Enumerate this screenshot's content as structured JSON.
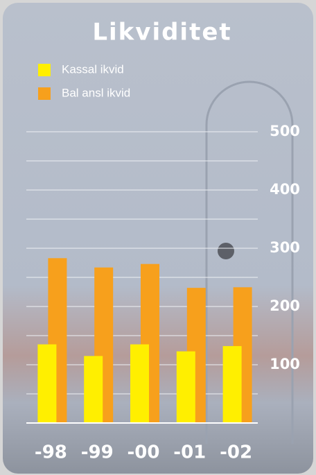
{
  "chart_data": {
    "type": "bar",
    "title": "Likviditet",
    "categories": [
      "-98",
      "-99",
      "-00",
      "-01",
      "-02"
    ],
    "series": [
      {
        "name": "Kassal ikvid",
        "color": "#ffef00",
        "values": [
          135,
          115,
          135,
          123,
          132
        ]
      },
      {
        "name": "Bal ansl ikvid",
        "color": "#f7a01c",
        "values": [
          283,
          267,
          273,
          232,
          233
        ]
      }
    ],
    "ylim": [
      0,
      500
    ],
    "yticks": [
      100,
      200,
      300,
      400,
      500
    ],
    "minor_yticks": [
      50,
      150,
      250,
      350,
      450
    ],
    "grid": true,
    "yaxis_side": "right",
    "legend": "top-left"
  }
}
